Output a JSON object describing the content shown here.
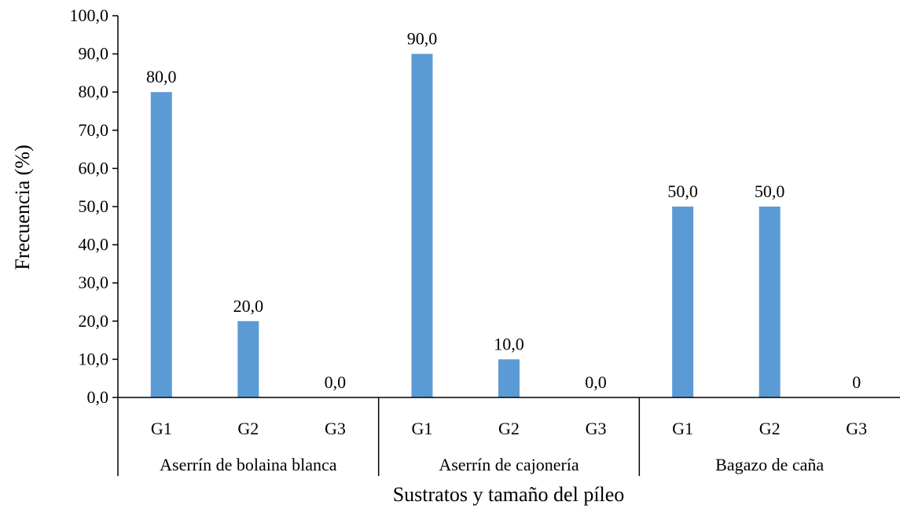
{
  "chart_data": {
    "type": "bar",
    "title": "",
    "xlabel": "Sustratos y tamaño del píleo",
    "ylabel": "Frecuencia (%)",
    "ylim": [
      0,
      100
    ],
    "y_ticks": [
      "0,0",
      "10,0",
      "20,0",
      "30,0",
      "40,0",
      "50,0",
      "60,0",
      "70,0",
      "80,0",
      "90,0",
      "100,0"
    ],
    "grid": false,
    "legend": "none",
    "bar_color": "#5B9BD5",
    "groups": [
      {
        "name": "Aserrín de bolaina blanca",
        "categories": [
          "G1",
          "G2",
          "G3"
        ],
        "values": [
          80,
          20,
          0
        ],
        "data_labels": [
          "80,0",
          "20,0",
          "0,0"
        ]
      },
      {
        "name": "Aserrín de cajonería",
        "categories": [
          "G1",
          "G2",
          "G3"
        ],
        "values": [
          90,
          10,
          0
        ],
        "data_labels": [
          "90,0",
          "10,0",
          "0,0"
        ]
      },
      {
        "name": "Bagazo de caña",
        "categories": [
          "G1",
          "G2",
          "G3"
        ],
        "values": [
          50,
          50,
          0
        ],
        "data_labels": [
          "50,0",
          "50,0",
          "0"
        ]
      }
    ]
  }
}
